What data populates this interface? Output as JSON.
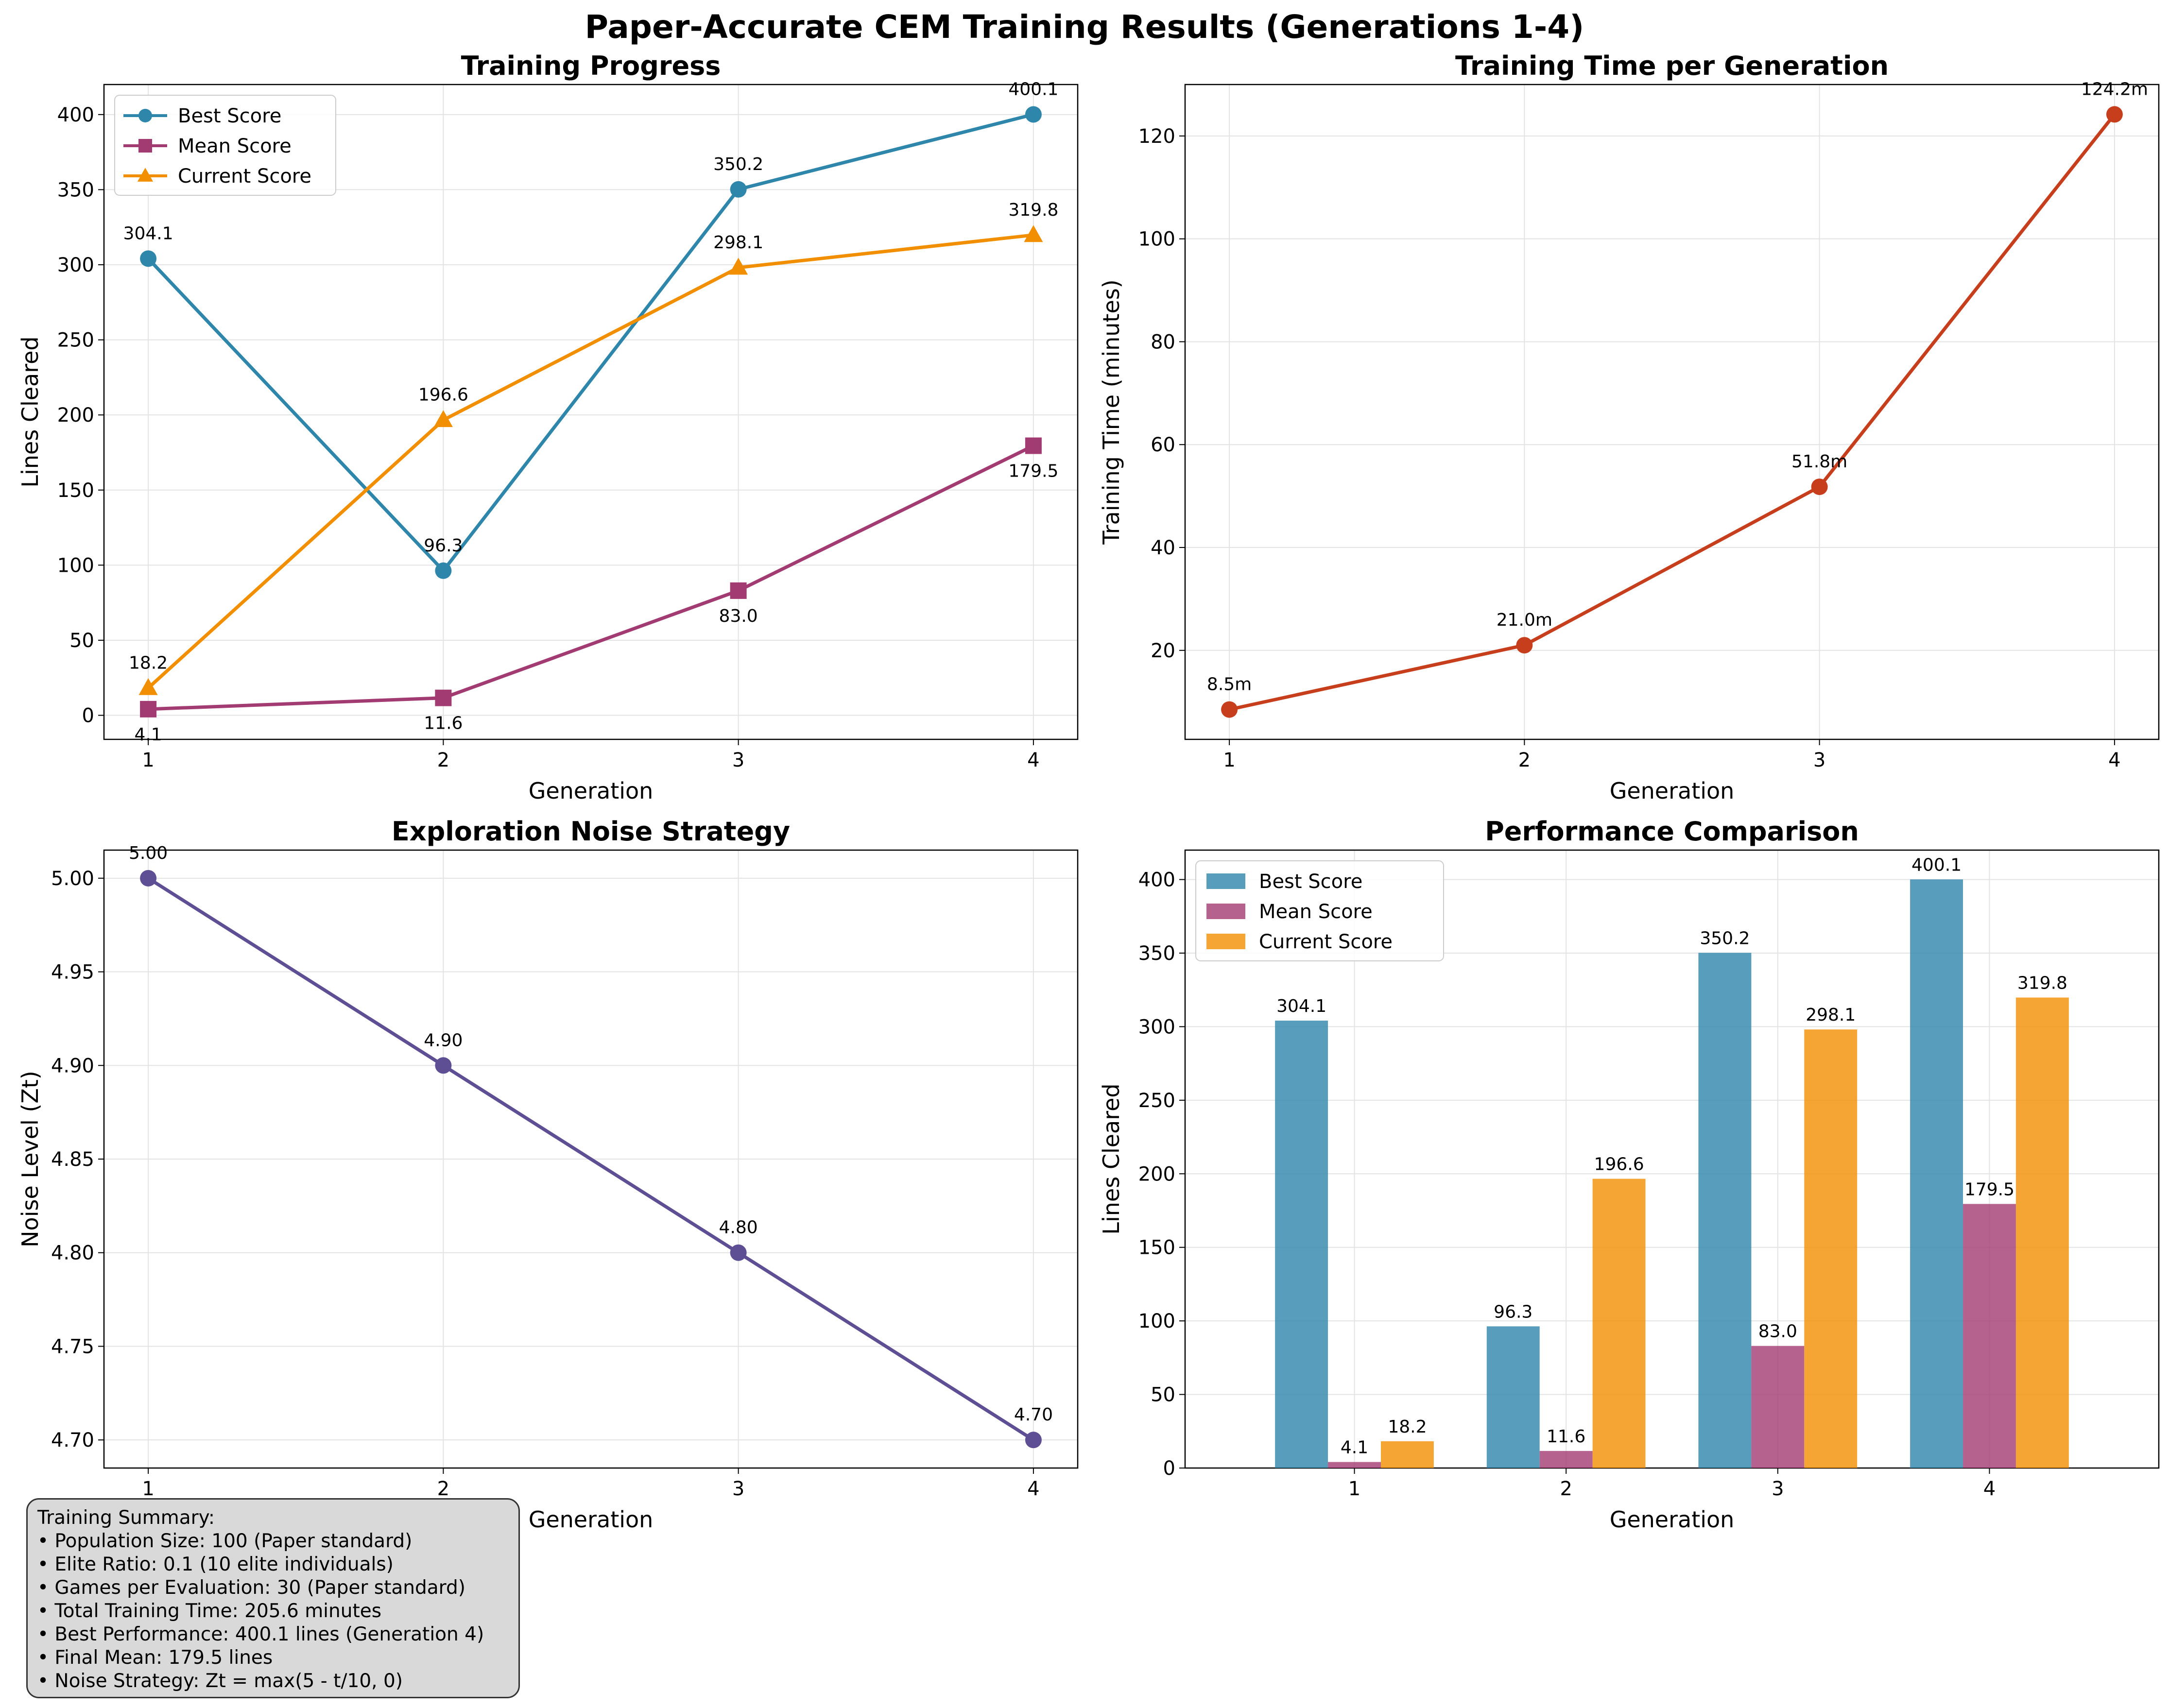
{
  "figure_title": "Paper-Accurate CEM Training Results (Generations 1-4)",
  "colors": {
    "best": "#2e86ab",
    "mean": "#a23b72",
    "current": "#f18f01",
    "time": "#c73e1d",
    "noise": "#5e4f94"
  },
  "chart_data": [
    {
      "id": "training-progress",
      "type": "line",
      "title": "Training Progress",
      "xlabel": "Generation",
      "ylabel": "Lines Cleared",
      "x": [
        1,
        2,
        3,
        4
      ],
      "xlim": [
        0.85,
        4.15
      ],
      "ylim": [
        -16,
        420
      ],
      "yticks": [
        0,
        50,
        100,
        150,
        200,
        250,
        300,
        350,
        400
      ],
      "grid": true,
      "legend": "top-left",
      "series": [
        {
          "name": "Best Score",
          "values": [
            304.1,
            96.3,
            350.2,
            400.1
          ],
          "labels": [
            "304.1",
            "96.3",
            "350.2",
            "400.1"
          ],
          "marker": "circle",
          "label_pos": "above"
        },
        {
          "name": "Mean Score",
          "values": [
            4.1,
            11.6,
            83.0,
            179.5
          ],
          "labels": [
            "4.1",
            "11.6",
            "83.0",
            "179.5"
          ],
          "marker": "square",
          "label_pos": "below"
        },
        {
          "name": "Current Score",
          "values": [
            18.2,
            196.6,
            298.1,
            319.8
          ],
          "labels": [
            "18.2",
            "196.6",
            "298.1",
            "319.8"
          ],
          "marker": "triangle",
          "label_pos": "above"
        }
      ]
    },
    {
      "id": "training-time",
      "type": "line",
      "title": "Training Time per Generation",
      "xlabel": "Generation",
      "ylabel": "Training Time (minutes)",
      "x": [
        1,
        2,
        3,
        4
      ],
      "xlim": [
        0.85,
        4.15
      ],
      "ylim": [
        2.7,
        130.0
      ],
      "yticks": [
        20,
        40,
        60,
        80,
        100,
        120
      ],
      "grid": true,
      "series": [
        {
          "values": [
            8.5,
            21.0,
            51.8,
            124.2
          ],
          "labels": [
            "8.5m",
            "21.0m",
            "51.8m",
            "124.2m"
          ],
          "marker": "circle",
          "label_pos": "above"
        }
      ]
    },
    {
      "id": "noise-strategy",
      "type": "line",
      "title": "Exploration Noise Strategy",
      "xlabel": "Generation",
      "ylabel": "Noise Level (Zt)",
      "x": [
        1,
        2,
        3,
        4
      ],
      "xlim": [
        0.85,
        4.15
      ],
      "ylim": [
        4.685,
        5.015
      ],
      "yticks": [
        4.7,
        4.75,
        4.8,
        4.85,
        4.9,
        4.95,
        5.0
      ],
      "ytick_labels": [
        "4.70",
        "4.75",
        "4.80",
        "4.85",
        "4.90",
        "4.95",
        "5.00"
      ],
      "grid": true,
      "series": [
        {
          "values": [
            5.0,
            4.9,
            4.8,
            4.7
          ],
          "labels": [
            "5.00",
            "4.90",
            "4.80",
            "4.70"
          ],
          "marker": "circle",
          "label_pos": "above"
        }
      ]
    },
    {
      "id": "performance-comparison",
      "type": "bar",
      "title": "Performance Comparison",
      "xlabel": "Generation",
      "ylabel": "Lines Cleared",
      "categories": [
        "1",
        "2",
        "3",
        "4"
      ],
      "ylim": [
        0,
        420
      ],
      "yticks": [
        0,
        50,
        100,
        150,
        200,
        250,
        300,
        350,
        400
      ],
      "grid": true,
      "legend": "top-left",
      "series": [
        {
          "name": "Best Score",
          "values": [
            304.1,
            96.3,
            350.2,
            400.1
          ],
          "labels": [
            "304.1",
            "96.3",
            "350.2",
            "400.1"
          ]
        },
        {
          "name": "Mean Score",
          "values": [
            4.1,
            11.6,
            83.0,
            179.5
          ],
          "labels": [
            "4.1",
            "11.6",
            "83.0",
            "179.5"
          ]
        },
        {
          "name": "Current Score",
          "values": [
            18.2,
            196.6,
            298.1,
            319.8
          ],
          "labels": [
            "18.2",
            "196.6",
            "298.1",
            "319.8"
          ]
        }
      ]
    }
  ],
  "summary": {
    "title": "Training Summary:",
    "lines": [
      "• Population Size: 100 (Paper standard)",
      "• Elite Ratio: 0.1 (10 elite individuals)",
      "• Games per Evaluation: 30 (Paper standard)",
      "• Total Training Time: 205.6 minutes",
      "• Best Performance: 400.1 lines (Generation 4)",
      "• Final Mean: 179.5 lines",
      "• Noise Strategy: Zt = max(5 - t/10, 0)"
    ]
  }
}
